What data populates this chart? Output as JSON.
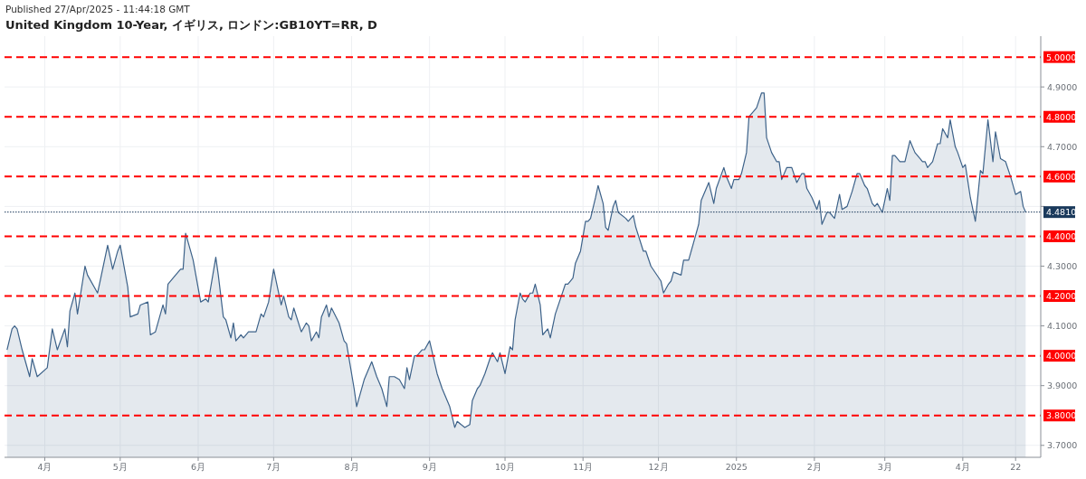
{
  "chart_data": {
    "type": "area",
    "title": "United Kingdom 10-Year, イギリス, ロンドン:GB10YT=RR, D",
    "annotations": [
      "Published 27/Apr/2025 - 11:44:18 GMT"
    ],
    "xlim": [
      "2024-03-16",
      "2025-05-02"
    ],
    "ylim": [
      3.66,
      5.07
    ],
    "xticks": [
      {
        "value": "2024-04-01",
        "label": "4月"
      },
      {
        "value": "2024-05-01",
        "label": "5月"
      },
      {
        "value": "2024-06-01",
        "label": "6月"
      },
      {
        "value": "2024-07-01",
        "label": "7月"
      },
      {
        "value": "2024-08-01",
        "label": "8月"
      },
      {
        "value": "2024-09-01",
        "label": "9月"
      },
      {
        "value": "2024-10-01",
        "label": "10月"
      },
      {
        "value": "2024-11-01",
        "label": "11月"
      },
      {
        "value": "2024-12-01",
        "label": "12月"
      },
      {
        "value": "2025-01-01",
        "label": "2025"
      },
      {
        "value": "2025-02-01",
        "label": "2月"
      },
      {
        "value": "2025-03-01",
        "label": "3月"
      },
      {
        "value": "2025-04-01",
        "label": "4月"
      },
      {
        "value": "2025-04-22",
        "label": "22"
      }
    ],
    "yticks": [
      {
        "value": 3.7,
        "label": "3.7000"
      },
      {
        "value": 3.9,
        "label": "3.9000"
      },
      {
        "value": 4.1,
        "label": "4.1000"
      },
      {
        "value": 4.3,
        "label": "4.3000"
      },
      {
        "value": 4.5,
        "label": null
      },
      {
        "value": 4.7,
        "label": "4.7000"
      },
      {
        "value": 4.9,
        "label": "4.9000"
      }
    ],
    "grid": true,
    "ref_lines": [
      {
        "axis": "y",
        "value": 3.8,
        "label": "3.8000",
        "color": "#ff0000",
        "line_style": "dashed"
      },
      {
        "axis": "y",
        "value": 4.0,
        "label": "4.0000",
        "color": "#ff0000",
        "line_style": "dashed"
      },
      {
        "axis": "y",
        "value": 4.2,
        "label": "4.2000",
        "color": "#ff0000",
        "line_style": "dashed"
      },
      {
        "axis": "y",
        "value": 4.4,
        "label": "4.4000",
        "color": "#ff0000",
        "line_style": "dashed"
      },
      {
        "axis": "y",
        "value": 4.6,
        "label": "4.6000",
        "color": "#ff0000",
        "line_style": "dashed"
      },
      {
        "axis": "y",
        "value": 4.8,
        "label": "4.8000",
        "color": "#ff0000",
        "line_style": "dashed"
      },
      {
        "axis": "y",
        "value": 5.0,
        "label": "5.0000",
        "color": "#ff0000",
        "line_style": "dashed"
      },
      {
        "axis": "y",
        "value": 4.481,
        "label": "4.4810",
        "color": "#1b3a5c",
        "line_style": "dotted"
      }
    ],
    "series": [
      {
        "color": "#3d6289",
        "x": [
          "2024-03-17",
          "2024-03-19",
          "2024-03-20",
          "2024-03-21",
          "2024-03-23",
          "2024-03-26",
          "2024-03-27",
          "2024-03-29",
          "2024-04-02",
          "2024-04-04",
          "2024-04-06",
          "2024-04-09",
          "2024-04-10",
          "2024-04-11",
          "2024-04-13",
          "2024-04-14",
          "2024-04-17",
          "2024-04-18",
          "2024-04-22",
          "2024-04-23",
          "2024-04-26",
          "2024-04-28",
          "2024-04-30",
          "2024-05-01",
          "2024-05-04",
          "2024-05-05",
          "2024-05-08",
          "2024-05-09",
          "2024-05-12",
          "2024-05-13",
          "2024-05-15",
          "2024-05-18",
          "2024-05-19",
          "2024-05-20",
          "2024-05-23",
          "2024-05-25",
          "2024-05-26",
          "2024-05-27",
          "2024-05-29",
          "2024-05-30",
          "2024-06-02",
          "2024-06-04",
          "2024-06-05",
          "2024-06-08",
          "2024-06-09",
          "2024-06-11",
          "2024-06-12",
          "2024-06-14",
          "2024-06-15",
          "2024-06-16",
          "2024-06-18",
          "2024-06-19",
          "2024-06-21",
          "2024-06-24",
          "2024-06-26",
          "2024-06-27",
          "2024-06-29",
          "2024-07-01",
          "2024-07-02",
          "2024-07-04",
          "2024-07-05",
          "2024-07-07",
          "2024-07-08",
          "2024-07-09",
          "2024-07-12",
          "2024-07-14",
          "2024-07-15",
          "2024-07-16",
          "2024-07-18",
          "2024-07-19",
          "2024-07-20",
          "2024-07-22",
          "2024-07-23",
          "2024-07-24",
          "2024-07-27",
          "2024-07-29",
          "2024-07-30",
          "2024-08-02",
          "2024-08-03",
          "2024-08-06",
          "2024-08-09",
          "2024-08-11",
          "2024-08-13",
          "2024-08-15",
          "2024-08-16",
          "2024-08-18",
          "2024-08-20",
          "2024-08-22",
          "2024-08-23",
          "2024-08-24",
          "2024-08-26",
          "2024-08-27",
          "2024-08-29",
          "2024-08-30",
          "2024-09-01",
          "2024-09-04",
          "2024-09-06",
          "2024-09-09",
          "2024-09-11",
          "2024-09-12",
          "2024-09-15",
          "2024-09-17",
          "2024-09-18",
          "2024-09-20",
          "2024-09-21",
          "2024-09-23",
          "2024-09-25",
          "2024-09-26",
          "2024-09-28",
          "2024-09-29",
          "2024-10-01",
          "2024-10-03",
          "2024-10-04",
          "2024-10-05",
          "2024-10-07",
          "2024-10-08",
          "2024-10-09",
          "2024-10-11",
          "2024-10-12",
          "2024-10-13",
          "2024-10-15",
          "2024-10-16",
          "2024-10-18",
          "2024-10-19",
          "2024-10-21",
          "2024-10-23",
          "2024-10-25",
          "2024-10-26",
          "2024-10-28",
          "2024-10-29",
          "2024-10-31",
          "2024-11-02",
          "2024-11-03",
          "2024-11-04",
          "2024-11-06",
          "2024-11-07",
          "2024-11-09",
          "2024-11-10",
          "2024-11-11",
          "2024-11-13",
          "2024-11-14",
          "2024-11-15",
          "2024-11-18",
          "2024-11-19",
          "2024-11-21",
          "2024-11-22",
          "2024-11-25",
          "2024-11-26",
          "2024-11-28",
          "2024-12-02",
          "2024-12-03",
          "2024-12-05",
          "2024-12-06",
          "2024-12-07",
          "2024-12-10",
          "2024-12-11",
          "2024-12-13",
          "2024-12-15",
          "2024-12-17",
          "2024-12-18",
          "2024-12-21",
          "2024-12-23",
          "2024-12-24",
          "2024-12-27",
          "2024-12-28",
          "2024-12-30",
          "2024-12-31",
          "2025-01-02",
          "2025-01-03",
          "2025-01-05",
          "2025-01-06",
          "2025-01-07",
          "2025-01-09",
          "2025-01-11",
          "2025-01-12",
          "2025-01-13",
          "2025-01-15",
          "2025-01-17",
          "2025-01-18",
          "2025-01-19",
          "2025-01-21",
          "2025-01-23",
          "2025-01-25",
          "2025-01-27",
          "2025-01-28",
          "2025-01-29",
          "2025-01-31",
          "2025-02-02",
          "2025-02-03",
          "2025-02-04",
          "2025-02-06",
          "2025-02-07",
          "2025-02-09",
          "2025-02-11",
          "2025-02-12",
          "2025-02-14",
          "2025-02-16",
          "2025-02-18",
          "2025-02-19",
          "2025-02-21",
          "2025-02-22",
          "2025-02-24",
          "2025-02-25",
          "2025-02-26",
          "2025-02-28",
          "2025-03-02",
          "2025-03-03",
          "2025-03-04",
          "2025-03-05",
          "2025-03-07",
          "2025-03-09",
          "2025-03-11",
          "2025-03-13",
          "2025-03-14",
          "2025-03-16",
          "2025-03-17",
          "2025-03-18",
          "2025-03-20",
          "2025-03-22",
          "2025-03-23",
          "2025-03-24",
          "2025-03-26",
          "2025-03-27",
          "2025-03-29",
          "2025-03-30",
          "2025-04-01",
          "2025-04-02",
          "2025-04-04",
          "2025-04-06",
          "2025-04-08",
          "2025-04-09",
          "2025-04-11",
          "2025-04-13",
          "2025-04-14",
          "2025-04-16",
          "2025-04-18",
          "2025-04-20",
          "2025-04-22",
          "2025-04-24",
          "2025-04-25",
          "2025-04-26"
        ],
        "values": [
          4.02,
          4.09,
          4.1,
          4.09,
          4.02,
          3.93,
          3.99,
          3.93,
          3.96,
          4.09,
          4.02,
          4.09,
          4.03,
          4.15,
          4.21,
          4.14,
          4.3,
          4.27,
          4.21,
          4.25,
          4.37,
          4.29,
          4.35,
          4.37,
          4.23,
          4.13,
          4.14,
          4.17,
          4.18,
          4.07,
          4.08,
          4.17,
          4.14,
          4.24,
          4.27,
          4.29,
          4.29,
          4.41,
          4.35,
          4.32,
          4.18,
          4.19,
          4.18,
          4.33,
          4.27,
          4.13,
          4.12,
          4.06,
          4.11,
          4.05,
          4.07,
          4.06,
          4.08,
          4.08,
          4.14,
          4.13,
          4.18,
          4.29,
          4.25,
          4.17,
          4.2,
          4.13,
          4.12,
          4.16,
          4.08,
          4.11,
          4.1,
          4.05,
          4.08,
          4.06,
          4.13,
          4.17,
          4.13,
          4.16,
          4.11,
          4.05,
          4.04,
          3.89,
          3.83,
          3.92,
          3.98,
          3.93,
          3.89,
          3.83,
          3.93,
          3.93,
          3.92,
          3.89,
          3.96,
          3.92,
          4.0,
          4.0,
          4.02,
          4.02,
          4.05,
          3.94,
          3.89,
          3.83,
          3.76,
          3.78,
          3.76,
          3.77,
          3.85,
          3.89,
          3.9,
          3.94,
          3.99,
          4.01,
          3.98,
          4.01,
          3.94,
          4.03,
          4.02,
          4.12,
          4.21,
          4.19,
          4.18,
          4.21,
          4.21,
          4.24,
          4.17,
          4.07,
          4.09,
          4.06,
          4.14,
          4.19,
          4.24,
          4.24,
          4.26,
          4.31,
          4.35,
          4.45,
          4.45,
          4.46,
          4.53,
          4.57,
          4.51,
          4.43,
          4.42,
          4.5,
          4.52,
          4.48,
          4.46,
          4.45,
          4.47,
          4.43,
          4.35,
          4.35,
          4.3,
          4.25,
          4.21,
          4.24,
          4.25,
          4.28,
          4.27,
          4.32,
          4.32,
          4.38,
          4.44,
          4.52,
          4.58,
          4.51,
          4.56,
          4.63,
          4.6,
          4.56,
          4.59,
          4.59,
          4.61,
          4.68,
          4.8,
          4.81,
          4.83,
          4.88,
          4.88,
          4.73,
          4.68,
          4.65,
          4.65,
          4.59,
          4.63,
          4.63,
          4.58,
          4.61,
          4.61,
          4.56,
          4.53,
          4.49,
          4.52,
          4.44,
          4.48,
          4.48,
          4.46,
          4.54,
          4.49,
          4.5,
          4.55,
          4.61,
          4.61,
          4.57,
          4.56,
          4.51,
          4.5,
          4.51,
          4.48,
          4.56,
          4.52,
          4.67,
          4.67,
          4.65,
          4.65,
          4.72,
          4.68,
          4.67,
          4.65,
          4.65,
          4.63,
          4.65,
          4.71,
          4.71,
          4.76,
          4.73,
          4.79,
          4.7,
          4.68,
          4.63,
          4.64,
          4.53,
          4.45,
          4.62,
          4.61,
          4.79,
          4.65,
          4.75,
          4.66,
          4.65,
          4.6,
          4.54,
          4.55,
          4.5,
          4.481
        ]
      }
    ]
  }
}
